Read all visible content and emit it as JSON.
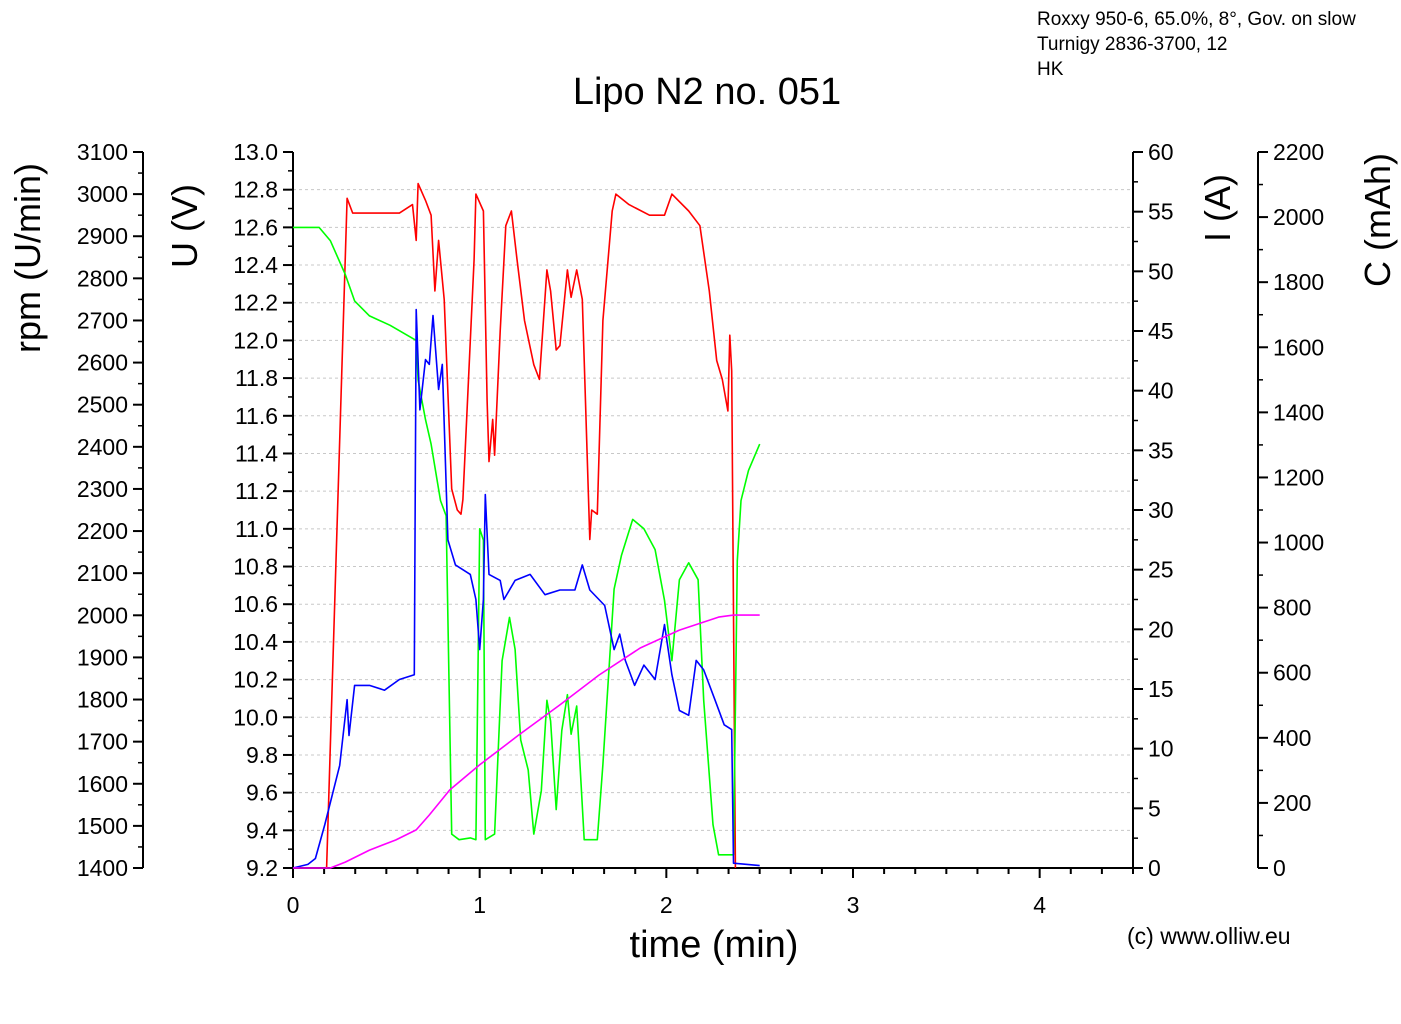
{
  "notes": [
    "Roxxy 950-6, 65.0%, 8°, Gov. on slow",
    "Turnigy 2836-3700, 12",
    "HK"
  ],
  "copyright": "(c) www.olliw.eu",
  "chart_data": {
    "type": "line",
    "title": "Lipo N2 no. 051",
    "xlabel": "time (min)",
    "xlim": [
      0,
      4.5
    ],
    "xticks": [
      0,
      1,
      2,
      3,
      4
    ],
    "grid": "horizontal dashed at U major ticks",
    "axes": {
      "rpm": {
        "label": "rpm (U/min)",
        "side": "left-outer",
        "lim": [
          1400,
          3100
        ],
        "step": 100
      },
      "U": {
        "label": "U (V)",
        "side": "left-inner",
        "lim": [
          9.2,
          13.0
        ],
        "step": 0.2
      },
      "I": {
        "label": "I (A)",
        "side": "right-inner",
        "lim": [
          0,
          60
        ],
        "step": 5
      },
      "C": {
        "label": "C (mAh)",
        "side": "right-outer",
        "lim": [
          0,
          2200
        ],
        "step": 200
      }
    },
    "series": [
      {
        "axis": "rpm",
        "color": "#ff0000",
        "points": [
          [
            0.18,
            1400
          ],
          [
            0.29,
            2990
          ],
          [
            0.32,
            2955
          ],
          [
            0.57,
            2955
          ],
          [
            0.64,
            2975
          ],
          [
            0.66,
            2890
          ],
          [
            0.67,
            3025
          ],
          [
            0.71,
            2985
          ],
          [
            0.74,
            2950
          ],
          [
            0.76,
            2770
          ],
          [
            0.78,
            2890
          ],
          [
            0.81,
            2750
          ],
          [
            0.85,
            2300
          ],
          [
            0.88,
            2250
          ],
          [
            0.9,
            2240
          ],
          [
            0.91,
            2275
          ],
          [
            0.97,
            2845
          ],
          [
            0.98,
            3000
          ],
          [
            1.02,
            2960
          ],
          [
            1.04,
            2510
          ],
          [
            1.05,
            2365
          ],
          [
            1.07,
            2465
          ],
          [
            1.08,
            2380
          ],
          [
            1.11,
            2675
          ],
          [
            1.14,
            2925
          ],
          [
            1.17,
            2960
          ],
          [
            1.2,
            2845
          ],
          [
            1.24,
            2700
          ],
          [
            1.29,
            2595
          ],
          [
            1.32,
            2560
          ],
          [
            1.36,
            2820
          ],
          [
            1.38,
            2770
          ],
          [
            1.41,
            2630
          ],
          [
            1.43,
            2640
          ],
          [
            1.47,
            2820
          ],
          [
            1.49,
            2755
          ],
          [
            1.52,
            2820
          ],
          [
            1.55,
            2750
          ],
          [
            1.59,
            2180
          ],
          [
            1.6,
            2250
          ],
          [
            1.63,
            2240
          ],
          [
            1.66,
            2700
          ],
          [
            1.71,
            2960
          ],
          [
            1.73,
            3000
          ],
          [
            1.8,
            2975
          ],
          [
            1.91,
            2950
          ],
          [
            1.99,
            2950
          ],
          [
            2.03,
            3000
          ],
          [
            2.12,
            2960
          ],
          [
            2.18,
            2925
          ],
          [
            2.23,
            2770
          ],
          [
            2.27,
            2605
          ],
          [
            2.3,
            2560
          ],
          [
            2.33,
            2485
          ],
          [
            2.34,
            2665
          ],
          [
            2.35,
            2580
          ],
          [
            2.37,
            1400
          ]
        ]
      },
      {
        "axis": "U",
        "color": "#00ff00",
        "points": [
          [
            0,
            12.6
          ],
          [
            0.14,
            12.6
          ],
          [
            0.2,
            12.53
          ],
          [
            0.28,
            12.35
          ],
          [
            0.33,
            12.21
          ],
          [
            0.41,
            12.13
          ],
          [
            0.52,
            12.08
          ],
          [
            0.66,
            12.0
          ],
          [
            0.67,
            11.79
          ],
          [
            0.71,
            11.58
          ],
          [
            0.74,
            11.45
          ],
          [
            0.79,
            11.15
          ],
          [
            0.82,
            11.07
          ],
          [
            0.85,
            9.38
          ],
          [
            0.89,
            9.35
          ],
          [
            0.95,
            9.36
          ],
          [
            0.98,
            9.35
          ],
          [
            1.0,
            11.0
          ],
          [
            1.02,
            10.94
          ],
          [
            1.03,
            9.35
          ],
          [
            1.08,
            9.38
          ],
          [
            1.12,
            10.3
          ],
          [
            1.16,
            10.53
          ],
          [
            1.19,
            10.36
          ],
          [
            1.22,
            9.88
          ],
          [
            1.26,
            9.72
          ],
          [
            1.29,
            9.38
          ],
          [
            1.33,
            9.61
          ],
          [
            1.36,
            10.09
          ],
          [
            1.38,
            9.98
          ],
          [
            1.41,
            9.51
          ],
          [
            1.44,
            9.93
          ],
          [
            1.47,
            10.12
          ],
          [
            1.49,
            9.91
          ],
          [
            1.52,
            10.06
          ],
          [
            1.56,
            9.35
          ],
          [
            1.63,
            9.35
          ],
          [
            1.66,
            9.75
          ],
          [
            1.72,
            10.68
          ],
          [
            1.76,
            10.86
          ],
          [
            1.82,
            11.05
          ],
          [
            1.88,
            11.0
          ],
          [
            1.94,
            10.89
          ],
          [
            1.99,
            10.62
          ],
          [
            2.03,
            10.3
          ],
          [
            2.07,
            10.73
          ],
          [
            2.12,
            10.82
          ],
          [
            2.17,
            10.73
          ],
          [
            2.2,
            10.09
          ],
          [
            2.25,
            9.43
          ],
          [
            2.28,
            9.27
          ],
          [
            2.34,
            9.27
          ],
          [
            2.36,
            9.27
          ],
          [
            2.38,
            10.83
          ],
          [
            2.4,
            11.15
          ],
          [
            2.44,
            11.31
          ],
          [
            2.5,
            11.45
          ]
        ]
      },
      {
        "axis": "I",
        "color": "#0000ff",
        "points": [
          [
            0,
            0
          ],
          [
            0.08,
            0.3
          ],
          [
            0.12,
            0.8
          ],
          [
            0.17,
            3.6
          ],
          [
            0.25,
            8.6
          ],
          [
            0.29,
            14.1
          ],
          [
            0.3,
            11.1
          ],
          [
            0.33,
            15.3
          ],
          [
            0.41,
            15.3
          ],
          [
            0.49,
            14.9
          ],
          [
            0.57,
            15.8
          ],
          [
            0.65,
            16.2
          ],
          [
            0.66,
            46.8
          ],
          [
            0.68,
            38.4
          ],
          [
            0.71,
            42.6
          ],
          [
            0.73,
            42.2
          ],
          [
            0.75,
            46.3
          ],
          [
            0.78,
            40.1
          ],
          [
            0.8,
            42.2
          ],
          [
            0.83,
            27.5
          ],
          [
            0.87,
            25.4
          ],
          [
            0.95,
            24.6
          ],
          [
            0.98,
            22.5
          ],
          [
            1.0,
            18.3
          ],
          [
            1.02,
            22.5
          ],
          [
            1.03,
            31.3
          ],
          [
            1.05,
            24.6
          ],
          [
            1.11,
            24.1
          ],
          [
            1.13,
            22.5
          ],
          [
            1.19,
            24.1
          ],
          [
            1.27,
            24.6
          ],
          [
            1.35,
            22.9
          ],
          [
            1.43,
            23.3
          ],
          [
            1.51,
            23.3
          ],
          [
            1.55,
            25.4
          ],
          [
            1.59,
            23.3
          ],
          [
            1.67,
            22.0
          ],
          [
            1.72,
            18.3
          ],
          [
            1.75,
            19.6
          ],
          [
            1.78,
            17.4
          ],
          [
            1.83,
            15.3
          ],
          [
            1.88,
            17.0
          ],
          [
            1.94,
            15.8
          ],
          [
            1.99,
            20.4
          ],
          [
            2.03,
            16.2
          ],
          [
            2.07,
            13.2
          ],
          [
            2.12,
            12.8
          ],
          [
            2.16,
            17.4
          ],
          [
            2.2,
            16.6
          ],
          [
            2.26,
            14.1
          ],
          [
            2.31,
            12.0
          ],
          [
            2.35,
            11.6
          ],
          [
            2.36,
            0.4
          ],
          [
            2.5,
            0.2
          ]
        ]
      },
      {
        "axis": "C",
        "color": "#ff00ff",
        "points": [
          [
            0,
            0
          ],
          [
            0.2,
            0
          ],
          [
            0.28,
            18
          ],
          [
            0.41,
            55
          ],
          [
            0.55,
            86
          ],
          [
            0.66,
            117
          ],
          [
            0.73,
            163
          ],
          [
            0.84,
            240
          ],
          [
            1.0,
            317
          ],
          [
            1.21,
            409
          ],
          [
            1.43,
            501
          ],
          [
            1.64,
            593
          ],
          [
            1.86,
            676
          ],
          [
            2.07,
            731
          ],
          [
            2.28,
            771
          ],
          [
            2.36,
            777
          ],
          [
            2.5,
            777
          ]
        ]
      }
    ]
  }
}
